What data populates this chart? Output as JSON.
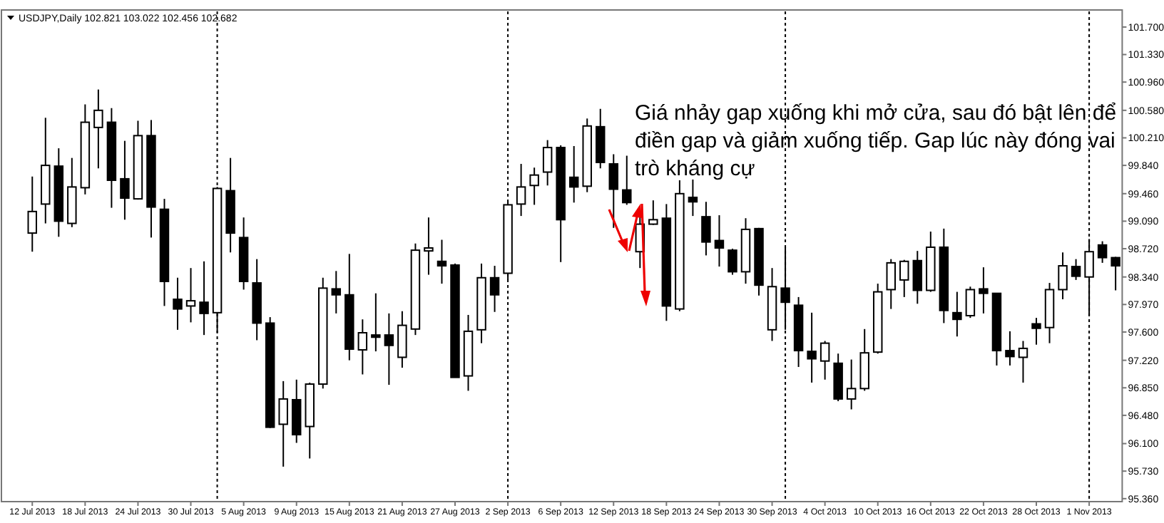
{
  "chart_data": {
    "type": "candlestick",
    "title": "USDJPY,Daily  102.821 103.022 102.456 102.682",
    "categories": [
      "12 Jul 2013",
      null,
      null,
      null,
      "18 Jul 2013",
      null,
      null,
      null,
      "24 Jul 2013",
      null,
      null,
      null,
      "30 Jul 2013",
      null,
      null,
      null,
      "5 Aug 2013",
      null,
      null,
      null,
      "9 Aug 2013",
      null,
      null,
      null,
      "15 Aug 2013",
      null,
      null,
      null,
      "21 Aug 2013",
      null,
      null,
      null,
      "27 Aug 2013",
      null,
      null,
      null,
      "2 Sep 2013",
      null,
      null,
      null,
      "6 Sep 2013",
      null,
      null,
      null,
      "12 Sep 2013",
      null,
      null,
      null,
      "18 Sep 2013",
      null,
      null,
      null,
      "24 Sep 2013",
      null,
      null,
      null,
      "30 Sep 2013",
      null,
      null,
      null,
      "4 Oct 2013",
      null,
      null,
      null,
      "10 Oct 2013",
      null,
      null,
      null,
      "16 Oct 2013",
      null,
      null,
      null,
      "22 Oct 2013",
      null,
      null,
      null,
      "28 Oct 2013",
      null,
      null,
      null,
      "1 Nov 2013",
      null,
      null
    ],
    "ohlc": [
      [
        98.93,
        99.69,
        98.68,
        99.22
      ],
      [
        99.32,
        100.48,
        99.06,
        99.84
      ],
      [
        99.83,
        100.07,
        98.88,
        99.09
      ],
      [
        99.06,
        99.94,
        99.01,
        99.55
      ],
      [
        99.54,
        100.66,
        99.45,
        100.42
      ],
      [
        100.35,
        100.86,
        99.8,
        100.58
      ],
      [
        100.42,
        100.61,
        99.27,
        99.64
      ],
      [
        99.66,
        100.17,
        99.11,
        99.4
      ],
      [
        99.39,
        100.44,
        99.38,
        100.24
      ],
      [
        100.24,
        100.45,
        98.87,
        99.28
      ],
      [
        99.25,
        99.39,
        97.95,
        98.28
      ],
      [
        98.04,
        98.33,
        97.63,
        97.91
      ],
      [
        97.95,
        98.46,
        97.73,
        98.02
      ],
      [
        98.0,
        98.55,
        97.56,
        97.85
      ],
      [
        97.86,
        99.55,
        97.59,
        99.53
      ],
      [
        99.5,
        99.94,
        98.67,
        98.93
      ],
      [
        98.87,
        99.14,
        98.17,
        98.28
      ],
      [
        98.26,
        98.58,
        97.49,
        97.72
      ],
      [
        97.72,
        97.8,
        96.31,
        96.32
      ],
      [
        96.36,
        96.94,
        95.79,
        96.7
      ],
      [
        96.69,
        96.96,
        96.11,
        96.22
      ],
      [
        96.33,
        96.92,
        95.9,
        96.9
      ],
      [
        96.9,
        98.33,
        96.84,
        98.19
      ],
      [
        98.18,
        98.42,
        97.85,
        98.1
      ],
      [
        98.1,
        98.65,
        97.22,
        97.37
      ],
      [
        97.36,
        97.77,
        97.03,
        97.59
      ],
      [
        97.56,
        98.12,
        97.34,
        97.53
      ],
      [
        97.56,
        97.85,
        96.89,
        97.42
      ],
      [
        97.26,
        97.88,
        97.12,
        97.69
      ],
      [
        97.64,
        98.79,
        97.56,
        98.7
      ],
      [
        98.69,
        99.14,
        98.37,
        98.73
      ],
      [
        98.55,
        98.84,
        98.25,
        98.49
      ],
      [
        98.5,
        98.52,
        96.99,
        96.99
      ],
      [
        97.01,
        97.83,
        96.81,
        97.61
      ],
      [
        97.63,
        98.52,
        97.45,
        98.33
      ],
      [
        98.33,
        98.49,
        97.87,
        98.1
      ],
      [
        98.39,
        99.35,
        98.3,
        99.31
      ],
      [
        99.32,
        99.86,
        99.16,
        99.55
      ],
      [
        99.57,
        99.81,
        99.31,
        99.71
      ],
      [
        99.75,
        100.18,
        99.57,
        100.08
      ],
      [
        100.08,
        100.11,
        98.54,
        99.11
      ],
      [
        99.68,
        100.1,
        99.34,
        99.55
      ],
      [
        99.56,
        100.47,
        99.48,
        100.37
      ],
      [
        100.36,
        100.6,
        99.8,
        99.88
      ],
      [
        99.86,
        99.99,
        99.0,
        99.52
      ],
      [
        99.51,
        99.97,
        99.31,
        99.34
      ],
      [
        98.68,
        99.18,
        98.46,
        99.05
      ],
      [
        99.05,
        99.37,
        99.04,
        99.11
      ],
      [
        99.13,
        99.32,
        97.75,
        97.95
      ],
      [
        97.91,
        99.64,
        97.88,
        99.46
      ],
      [
        99.41,
        99.65,
        99.16,
        99.35
      ],
      [
        99.15,
        99.35,
        98.63,
        98.81
      ],
      [
        98.83,
        99.17,
        98.48,
        98.73
      ],
      [
        98.7,
        98.72,
        98.37,
        98.41
      ],
      [
        98.41,
        99.13,
        98.25,
        98.98
      ],
      [
        98.99,
        99.0,
        98.09,
        98.23
      ],
      [
        97.63,
        98.46,
        97.48,
        98.21
      ],
      [
        98.19,
        98.74,
        97.63,
        98.0
      ],
      [
        97.96,
        98.07,
        97.13,
        97.35
      ],
      [
        97.34,
        97.86,
        96.92,
        97.24
      ],
      [
        97.21,
        97.48,
        96.96,
        97.45
      ],
      [
        97.18,
        97.31,
        96.67,
        96.7
      ],
      [
        96.7,
        97.23,
        96.56,
        96.84
      ],
      [
        96.84,
        97.64,
        96.81,
        97.32
      ],
      [
        97.33,
        98.25,
        97.31,
        98.14
      ],
      [
        98.17,
        98.58,
        97.91,
        98.53
      ],
      [
        98.3,
        98.57,
        98.07,
        98.55
      ],
      [
        98.56,
        98.69,
        97.98,
        98.16
      ],
      [
        98.16,
        98.95,
        98.14,
        98.74
      ],
      [
        98.74,
        98.99,
        97.72,
        97.89
      ],
      [
        97.86,
        98.14,
        97.54,
        97.77
      ],
      [
        97.82,
        98.21,
        97.79,
        98.17
      ],
      [
        98.18,
        98.47,
        97.85,
        98.12
      ],
      [
        98.12,
        98.12,
        97.15,
        97.35
      ],
      [
        97.35,
        97.61,
        97.15,
        97.27
      ],
      [
        97.26,
        97.48,
        96.92,
        97.38
      ],
      [
        97.71,
        97.79,
        97.43,
        97.65
      ],
      [
        97.66,
        98.26,
        97.45,
        98.17
      ],
      [
        98.17,
        98.67,
        98.04,
        98.49
      ],
      [
        98.48,
        98.58,
        98.3,
        98.35
      ],
      [
        98.34,
        98.85,
        97.82,
        98.68
      ],
      [
        98.77,
        98.82,
        98.53,
        98.6
      ],
      [
        98.6,
        98.61,
        98.16,
        98.49
      ]
    ],
    "ylim": [
      95.32,
      101.91
    ],
    "yticks": [
      {
        "value": 101.7,
        "label": "101.700"
      },
      {
        "value": 101.33,
        "label": "101.330"
      },
      {
        "value": 100.96,
        "label": "100.960"
      },
      {
        "value": 100.58,
        "label": "100.580"
      },
      {
        "value": 100.21,
        "label": "100.210"
      },
      {
        "value": 99.84,
        "label": "99.840"
      },
      {
        "value": 99.46,
        "label": "99.460"
      },
      {
        "value": 99.09,
        "label": "99.090"
      },
      {
        "value": 98.72,
        "label": "98.720"
      },
      {
        "value": 98.34,
        "label": "98.340"
      },
      {
        "value": 97.97,
        "label": "97.970"
      },
      {
        "value": 97.6,
        "label": "97.600"
      },
      {
        "value": 97.22,
        "label": "97.220"
      },
      {
        "value": 96.85,
        "label": "96.850"
      },
      {
        "value": 96.48,
        "label": "96.480"
      },
      {
        "value": 96.1,
        "label": "96.100"
      },
      {
        "value": 95.73,
        "label": "95.730"
      },
      {
        "value": 95.36,
        "label": "95.360"
      }
    ],
    "annotations": [
      "Giá nhảy gap xuống khi mở cửa, sau đó bật lên để điền gap và giảm xuống tiếp. Gap lúc này đóng vai trò kháng cự"
    ],
    "grid": "x"
  }
}
